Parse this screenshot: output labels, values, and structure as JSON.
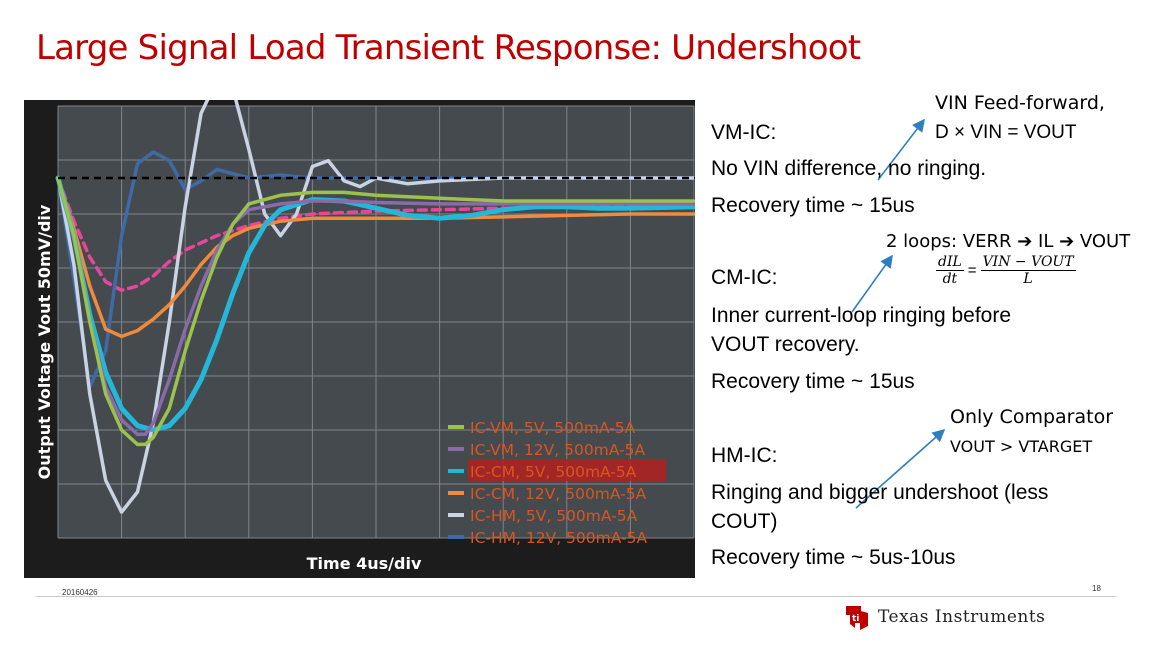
{
  "slide": {
    "title": "Large Signal Load Transient Response: Undershoot",
    "footer_date": "20160426",
    "page_number": "18",
    "brand": "Texas Instruments",
    "brand_color": "#c00000"
  },
  "notes": {
    "vm_header": "VM-IC:",
    "vm_line1": "No VIN difference, no ringing.",
    "vm_line2": "Recovery time ~ 15us",
    "vm_callout1": "VIN Feed-forward,",
    "vm_callout2": "D × VIN = VOUT",
    "cm_callout": "2 loops: VERR ➔ IL ➔ VOUT",
    "cm_formula_lhs_num": "dIL",
    "cm_formula_lhs_den": "dt",
    "cm_formula_eq": "=",
    "cm_formula_rhs_num": "VIN − VOUT",
    "cm_formula_rhs_den": "L",
    "cm_header": "CM-IC:",
    "cm_line1": "Inner current-loop ringing before",
    "cm_line2": "VOUT recovery.",
    "cm_line3": "Recovery time ~ 15us",
    "hm_callout1": "Only Comparator",
    "hm_callout2": "VOUT > VTARGET",
    "hm_header": "HM-IC:",
    "hm_line1": "Ringing and bigger undershoot (less",
    "hm_line2": "COUT)",
    "hm_line3": "Recovery time ~ 5us-10us"
  },
  "chart_data": {
    "type": "line",
    "title": "",
    "xlabel": "Time  4us/div",
    "ylabel": "Output Voltage  Vout  50mV/div",
    "xlim": [
      0,
      40
    ],
    "ylim": [
      -250,
      50
    ],
    "x_unit": "us",
    "y_unit": "mV",
    "grid": true,
    "legend_position": "bottom-right",
    "reference_level": 0,
    "colors": {
      "plot_background": "#454a4f",
      "grid": "#7e8489",
      "frame": "#1c1c1c"
    },
    "series": [
      {
        "name": "IC-VM, 5V, 500mA-5A",
        "color": "#9ac24c",
        "x": [
          0,
          1,
          2,
          3,
          4,
          5,
          5.5,
          6,
          7,
          8,
          9,
          10,
          11,
          12,
          14,
          16,
          18,
          20,
          24,
          28,
          32,
          36,
          40
        ],
        "y": [
          0,
          -40,
          -100,
          -150,
          -175,
          -185,
          -185,
          -180,
          -160,
          -120,
          -85,
          -55,
          -32,
          -18,
          -12,
          -10,
          -10,
          -12,
          -14,
          -16,
          -16,
          -16,
          -16
        ]
      },
      {
        "name": "IC-VM, 12V, 500mA-5A",
        "color": "#8a6aaa",
        "x": [
          0,
          1,
          2,
          3,
          4,
          5,
          5.5,
          6,
          7,
          8,
          9,
          10,
          11,
          12,
          14,
          16,
          18,
          20,
          24,
          28,
          32,
          36,
          40
        ],
        "y": [
          0,
          -40,
          -100,
          -145,
          -168,
          -178,
          -178,
          -170,
          -140,
          -105,
          -75,
          -50,
          -32,
          -22,
          -18,
          -16,
          -16,
          -17,
          -18,
          -18,
          -18,
          -18,
          -18
        ]
      },
      {
        "name": "IC-CM, 5V, 500mA-5A",
        "color": "#24b7d8",
        "x": [
          0,
          1,
          2,
          3,
          4,
          5,
          6,
          7,
          8,
          9,
          10,
          11,
          12,
          13,
          14,
          16,
          18,
          20,
          22,
          24,
          26,
          28,
          30,
          32,
          34,
          36,
          40
        ],
        "y": [
          0,
          -40,
          -95,
          -135,
          -160,
          -172,
          -175,
          -172,
          -160,
          -140,
          -112,
          -80,
          -52,
          -33,
          -22,
          -15,
          -16,
          -21,
          -26,
          -28,
          -26,
          -22,
          -20,
          -20,
          -21,
          -21,
          -20
        ]
      },
      {
        "name": "IC-CM, 12V, 500mA-5A",
        "color": "#f08a3c",
        "x": [
          0,
          1,
          2,
          3,
          4,
          5,
          6,
          7,
          8,
          9,
          10,
          11,
          12,
          14,
          16,
          18,
          20,
          24,
          28,
          32,
          36,
          40
        ],
        "y": [
          0,
          -35,
          -75,
          -105,
          -110,
          -106,
          -98,
          -88,
          -75,
          -60,
          -48,
          -40,
          -35,
          -30,
          -28,
          -28,
          -28,
          -28,
          -27,
          -26,
          -25,
          -25
        ]
      },
      {
        "name": "IC-HM, 5V, 500mA-5A",
        "color": "#c9d3e3",
        "x": [
          0,
          1,
          2,
          3,
          4,
          5,
          6,
          7,
          8,
          9,
          10,
          11,
          12,
          13,
          14,
          15,
          16,
          17,
          18,
          19,
          20,
          22,
          24,
          28,
          32,
          36,
          40
        ],
        "y": [
          0,
          -60,
          -150,
          -210,
          -232,
          -218,
          -170,
          -100,
          -20,
          45,
          68,
          62,
          20,
          -25,
          -40,
          -25,
          8,
          12,
          -2,
          -6,
          0,
          -4,
          -2,
          0,
          0,
          0,
          0
        ]
      },
      {
        "name": "IC-HM, 12V, 500mA-5A",
        "color": "#3f6aa5",
        "x": [
          0,
          1,
          2,
          3,
          4,
          5,
          6,
          7,
          8,
          9,
          10,
          12,
          14,
          16,
          18,
          20,
          22,
          24,
          28,
          32,
          36,
          40
        ],
        "y": [
          0,
          -70,
          -145,
          -120,
          -40,
          10,
          18,
          12,
          -8,
          -2,
          6,
          0,
          2,
          0,
          0,
          0,
          0,
          0,
          0,
          0,
          0,
          0
        ]
      },
      {
        "name": "",
        "color": "#e8469c",
        "x": [
          0,
          1,
          2,
          3,
          4,
          5,
          6,
          7,
          8,
          10,
          12,
          14,
          16,
          18,
          20,
          24,
          28,
          32,
          36,
          40
        ],
        "y": [
          0,
          -30,
          -55,
          -72,
          -78,
          -75,
          -68,
          -58,
          -50,
          -40,
          -33,
          -28,
          -25,
          -24,
          -23,
          -22,
          -21,
          -20,
          -20,
          -20
        ]
      }
    ]
  }
}
